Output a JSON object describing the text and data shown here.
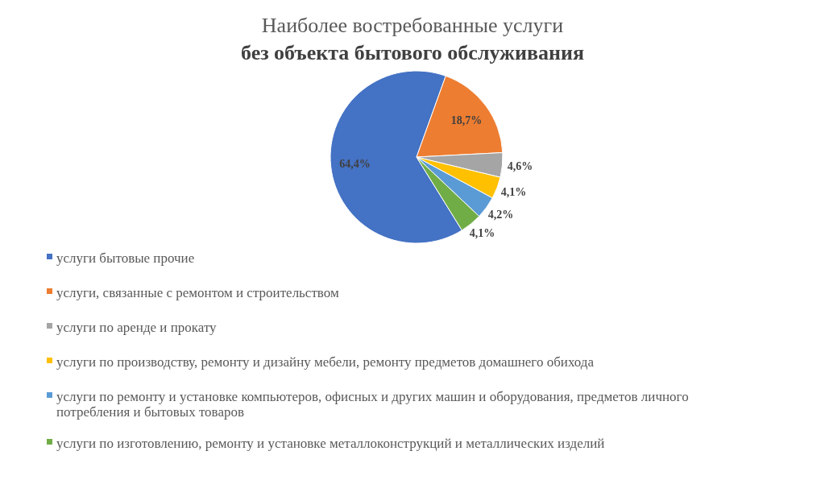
{
  "chart_data": {
    "type": "pie",
    "title": "Наиболее востребованные услуги",
    "subtitle": "без объекта бытового обслуживания",
    "categories": [
      "услуги бытовые прочие",
      "услуги, связанные с ремонтом и строительством",
      "услуги по аренде и прокату",
      "услуги по производству, ремонту и дизайну мебели, ремонту предметов домашнего обихода",
      "услуги по ремонту и установке компьютеров, офисных и других машин и оборудования, предметов личного потребления и бытовых товаров",
      "услуги по изготовлению, ремонту и установке металлоконструкций и металлических изделий"
    ],
    "values": [
      64.4,
      18.7,
      4.6,
      4.1,
      4.2,
      4.1
    ],
    "colors": [
      "#4472c4",
      "#ed7d31",
      "#a5a5a5",
      "#ffc000",
      "#5b9bd5",
      "#70ad47"
    ],
    "value_labels": [
      "64,4%",
      "18,7%",
      "4,6%",
      "4,1%",
      "4,2%",
      "4,1%"
    ],
    "legend": "bottom"
  }
}
